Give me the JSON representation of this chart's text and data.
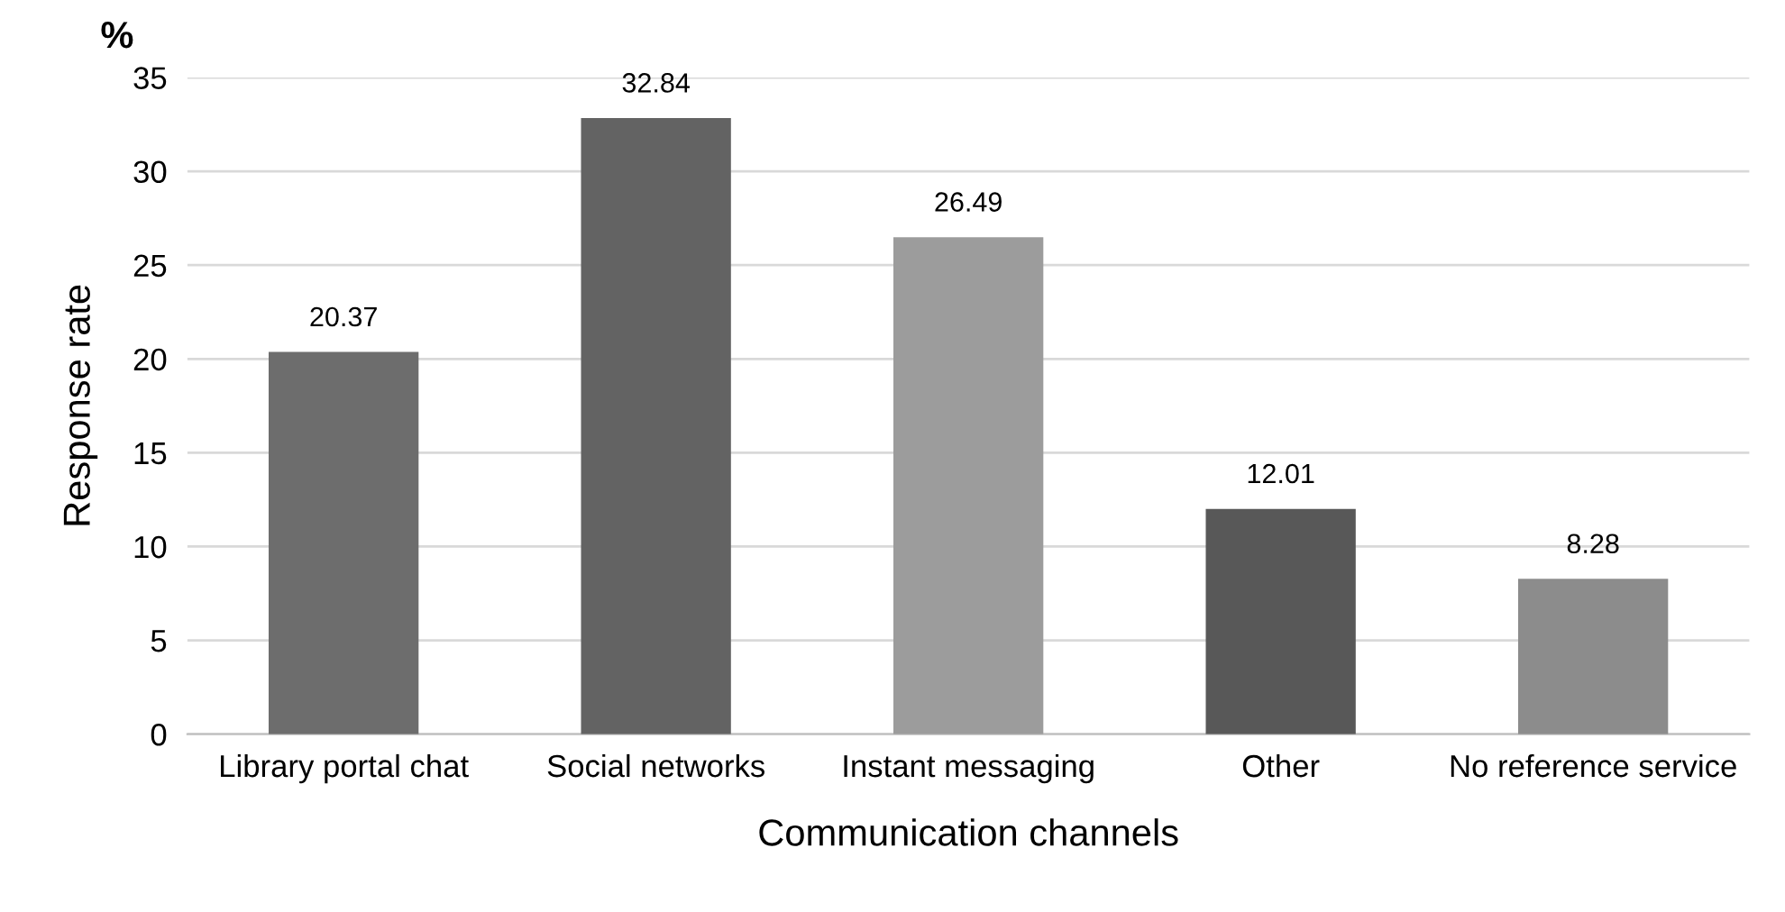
{
  "chart_data": {
    "type": "bar",
    "categories": [
      "Library portal chat",
      "Social networks",
      "Instant messaging",
      "Other",
      "No reference service"
    ],
    "values": [
      20.37,
      32.84,
      26.49,
      12.01,
      8.28
    ],
    "colors": [
      "#6d6d6d",
      "#636363",
      "#9c9c9c",
      "#585858",
      "#8c8c8c"
    ],
    "xlabel": "Communication channels",
    "ylabel": "Response rate",
    "annotations": [
      "%"
    ],
    "ylim": [
      0,
      35
    ],
    "yticks": [
      0,
      5,
      10,
      15,
      20,
      25,
      30,
      35
    ],
    "grid": "y",
    "data_labels": true
  }
}
